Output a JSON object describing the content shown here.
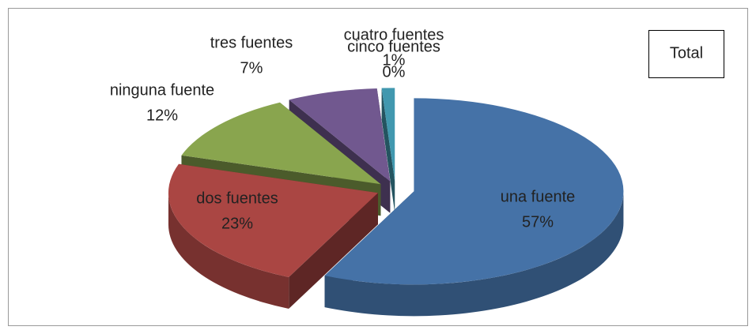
{
  "chart_data": {
    "type": "pie",
    "title": "Total",
    "categories": [
      "una fuente",
      "dos fuentes",
      "ninguna fuente",
      "tres fuentes",
      "cuatro fuentes",
      "cinco fuentes"
    ],
    "values": [
      57,
      23,
      12,
      7,
      1,
      0
    ],
    "value_labels": [
      "57%",
      "23%",
      "12%",
      "7%",
      "1%",
      "0%"
    ],
    "colors": [
      "#4572a7",
      "#aa4643",
      "#89a54e",
      "#71588f",
      "#4198af",
      "#db843d"
    ]
  }
}
